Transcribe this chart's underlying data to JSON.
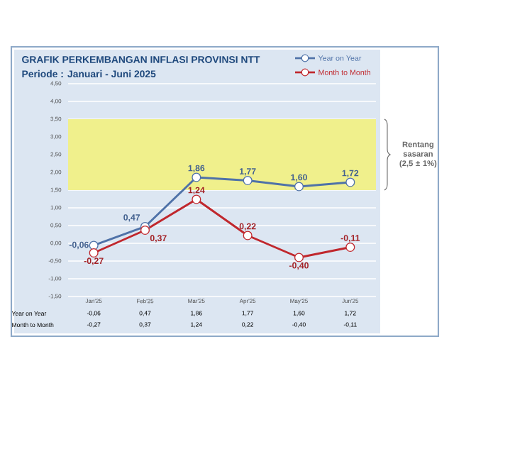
{
  "chart_data": {
    "type": "line",
    "title": "GRAFIK PERKEMBANGAN INFLASI PROVINSI NTT",
    "subtitle": "Periode : Januari - Juni 2025",
    "categories": [
      "Jan'25",
      "Feb'25",
      "Mar'25",
      "Apr'25",
      "May'25",
      "Jun'25"
    ],
    "series": [
      {
        "name": "Year on Year",
        "color": "#4f72a8",
        "values": [
          -0.06,
          0.47,
          1.86,
          1.77,
          1.6,
          1.72
        ],
        "value_labels": [
          "-0,06",
          "0,47",
          "1,86",
          "1,77",
          "1,60",
          "1,72"
        ]
      },
      {
        "name": "Month to Month",
        "color": "#c0272d",
        "values": [
          -0.27,
          0.37,
          1.24,
          0.22,
          -0.4,
          -0.11
        ],
        "value_labels": [
          "-0,27",
          "0,37",
          "1,24",
          "0,22",
          "-0,40",
          "-0,11"
        ]
      }
    ],
    "ylim": [
      -1.5,
      4.5
    ],
    "yticks": [
      {
        "value": -1.5,
        "label": "-1,50"
      },
      {
        "value": -1.0,
        "label": "-1,00"
      },
      {
        "value": -0.5,
        "label": "-0,50"
      },
      {
        "value": 0,
        "label": "0,00"
      },
      {
        "value": 0.5,
        "label": "0,50"
      },
      {
        "value": 1.0,
        "label": "1,00"
      },
      {
        "value": 1.5,
        "label": "1,50"
      },
      {
        "value": 2.0,
        "label": "2,00"
      },
      {
        "value": 2.5,
        "label": "2,50"
      },
      {
        "value": 3.0,
        "label": "3,00"
      },
      {
        "value": 3.5,
        "label": "3,50"
      },
      {
        "value": 4.0,
        "label": "4,00"
      },
      {
        "value": 4.5,
        "label": "4,50"
      }
    ],
    "bands": [
      {
        "axis": "y",
        "from": 1.5,
        "to": 3.5,
        "label": "Rentang sasaran (2,5 ± 1%)",
        "color": "#f0f08c"
      }
    ],
    "grid": "y",
    "legend": "top right",
    "marker": "circle"
  }
}
